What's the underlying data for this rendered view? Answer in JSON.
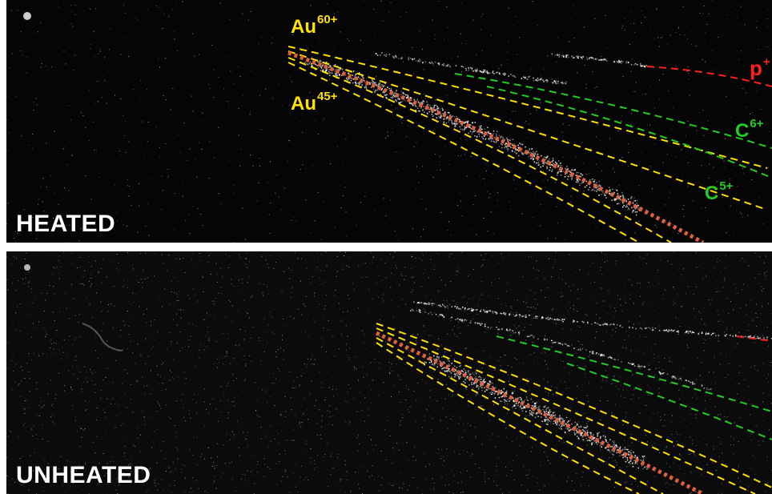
{
  "panels": {
    "heated": {
      "label": "HEATED",
      "ion_labels": {
        "au60": {
          "element": "Au",
          "charge": "60+"
        },
        "au45": {
          "element": "Au",
          "charge": "45+"
        },
        "proton": {
          "element": "p",
          "charge": "+"
        },
        "c6": {
          "element": "C",
          "charge": "6+"
        },
        "c5": {
          "element": "C",
          "charge": "5+"
        }
      }
    },
    "unheated": {
      "label": "UNHEATED"
    }
  },
  "colors": {
    "gold_traces": "#ffe000",
    "gold_center_trace": "#e0603a",
    "carbon_traces": "#22cc22",
    "proton_trace": "#ff2020",
    "signal": "#ffffff",
    "background": "#050505"
  }
}
